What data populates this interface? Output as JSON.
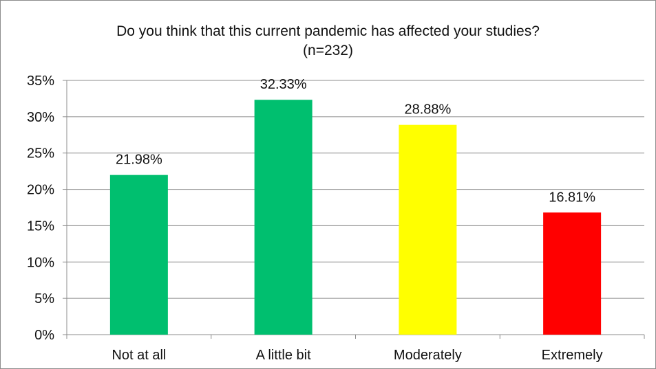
{
  "chart_data": {
    "type": "bar",
    "title": "Do you think that this current pandemic has affected your studies?",
    "subtitle": "(n=232)",
    "categories": [
      "Not at all",
      "A little bit",
      "Moderately",
      "Extremely"
    ],
    "values": [
      21.98,
      32.33,
      28.88,
      16.81
    ],
    "data_labels": [
      "21.98%",
      "32.33%",
      "28.88%",
      "16.81%"
    ],
    "bar_colors": [
      "#00bf6f",
      "#00bf6f",
      "#ffff00",
      "#ff0000"
    ],
    "ylim": [
      0,
      35
    ],
    "y_ticks": [
      0,
      5,
      10,
      15,
      20,
      25,
      30,
      35
    ],
    "y_tick_labels": [
      "0%",
      "5%",
      "10%",
      "15%",
      "20%",
      "25%",
      "30%",
      "35%"
    ],
    "xlabel": "",
    "ylabel": "",
    "grid": true,
    "legend": "none"
  }
}
